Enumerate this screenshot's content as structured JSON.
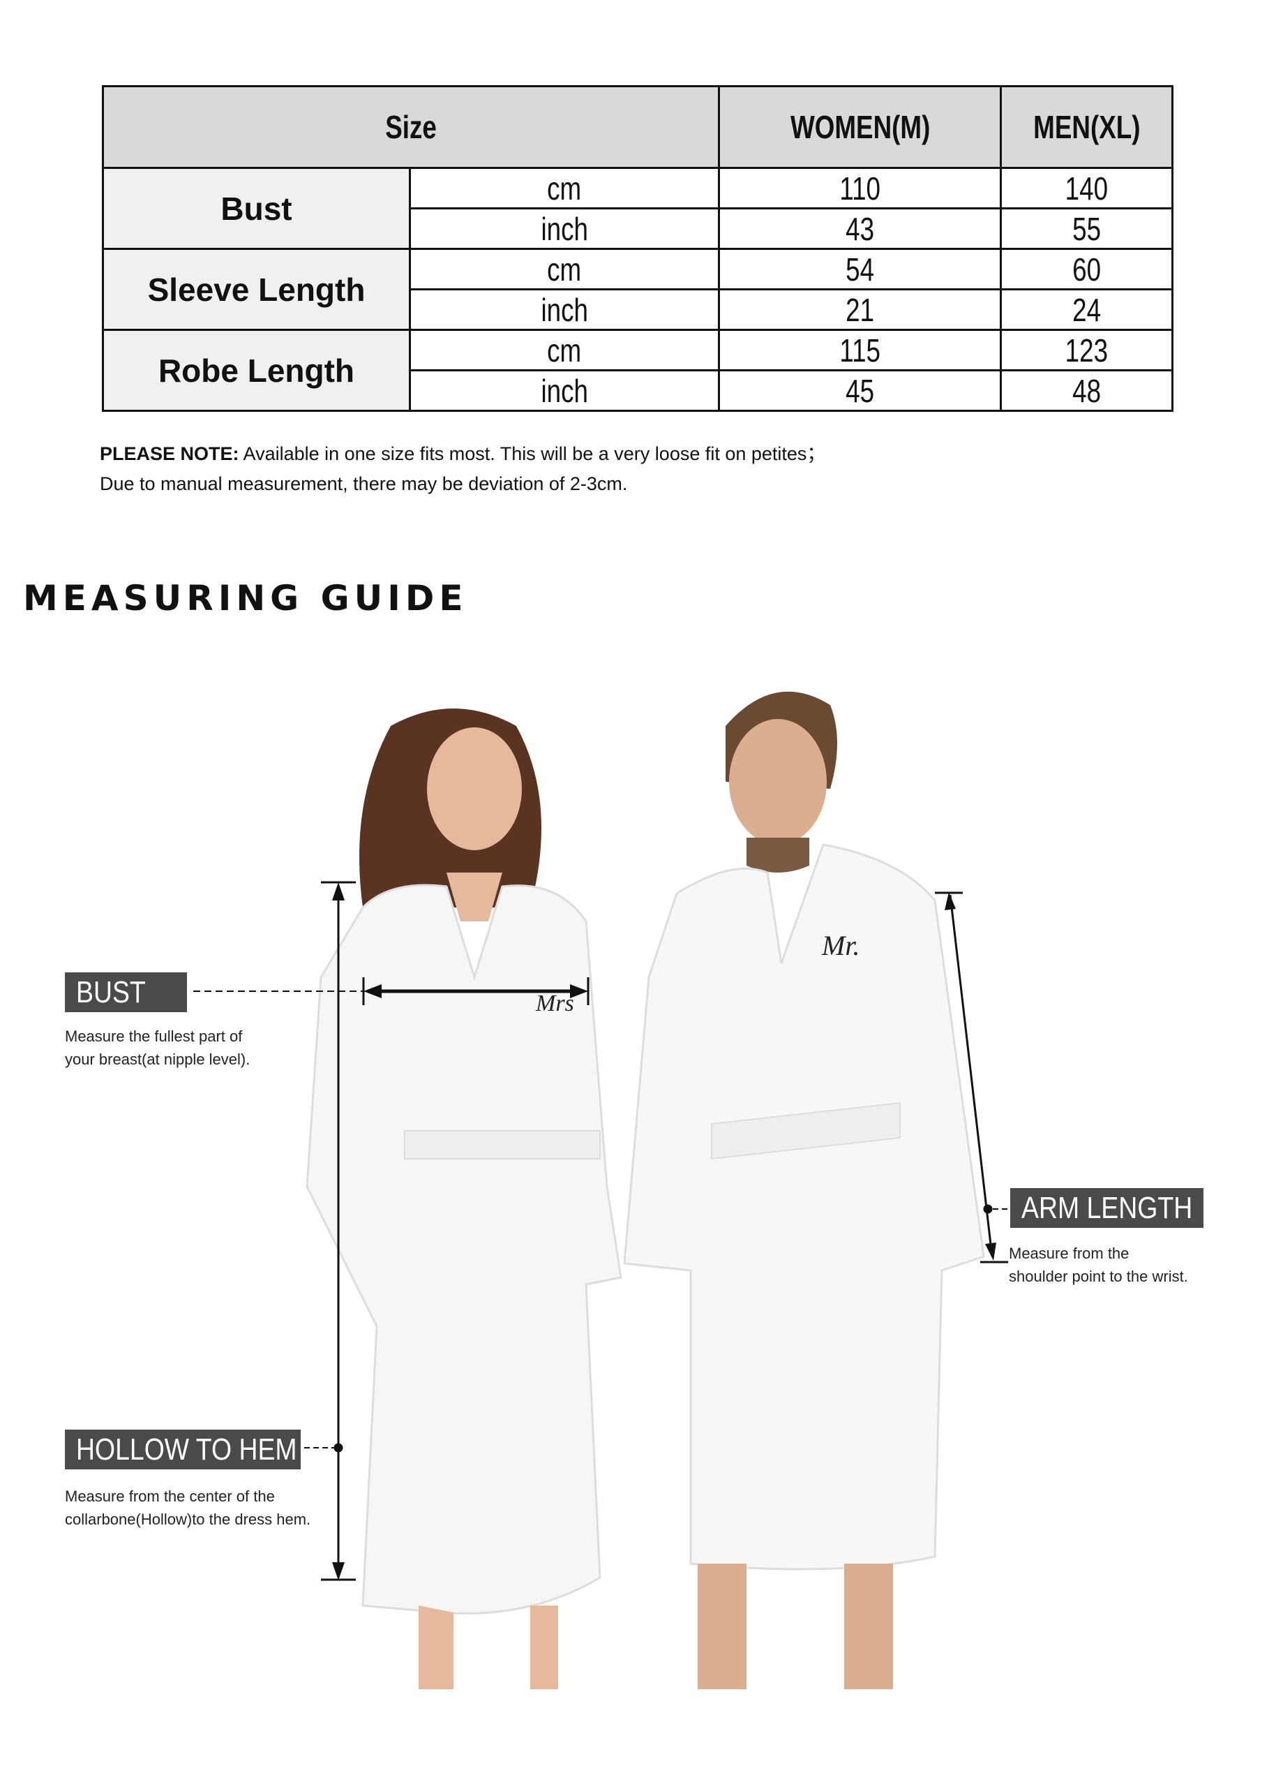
{
  "table": {
    "header": {
      "size": "Size",
      "women": "WOMEN(M)",
      "men": "MEN(XL)"
    },
    "groups": [
      {
        "label": "Bust",
        "rows": [
          {
            "unit": "cm",
            "women": "110",
            "men": "140"
          },
          {
            "unit": "inch",
            "women": "43",
            "men": "55"
          }
        ]
      },
      {
        "label": "Sleeve Length",
        "rows": [
          {
            "unit": "cm",
            "women": "54",
            "men": "60"
          },
          {
            "unit": "inch",
            "women": "21",
            "men": "24"
          }
        ]
      },
      {
        "label": "Robe Length",
        "rows": [
          {
            "unit": "cm",
            "women": "115",
            "men": "123"
          },
          {
            "unit": "inch",
            "women": "45",
            "men": "48"
          }
        ]
      }
    ]
  },
  "note": {
    "prefix": "PLEASE NOTE:",
    "line1": " Available in one size fits most. This will be a very loose fit on petites；",
    "line2": "Due to manual measurement, there may be deviation of 2-3cm."
  },
  "guide": {
    "title": "MEASURING GUIDE",
    "bust": {
      "label": "BUST",
      "desc1": "Measure the fullest part of",
      "desc2": "your breast(at nipple level)."
    },
    "hollow": {
      "label": "HOLLOW TO HEM",
      "desc1": "Measure from the center of the",
      "desc2": "collarbone(Hollow)to the dress hem."
    },
    "arm": {
      "label": "ARM LENGTH",
      "desc1": "Measure from the",
      "desc2": "shoulder point to the wrist."
    },
    "embroidery_women": "Mrs",
    "embroidery_men": "Mr."
  }
}
